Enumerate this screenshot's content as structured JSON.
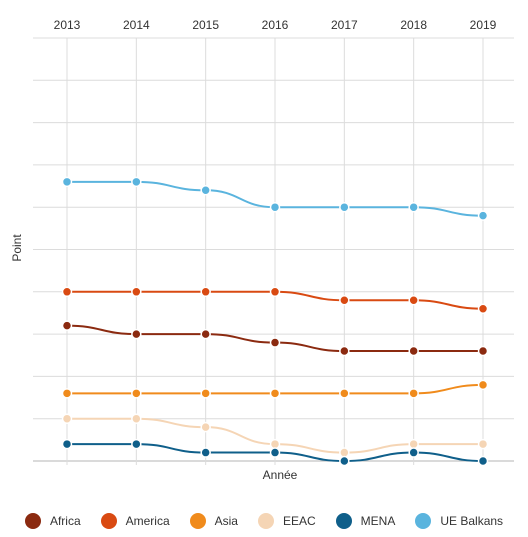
{
  "chart_data": {
    "type": "line",
    "title": "",
    "xlabel": "Année",
    "ylabel": "Point",
    "x": [
      "2013",
      "2014",
      "2015",
      "2016",
      "2017",
      "2018",
      "2019"
    ],
    "ylim": [
      0,
      10
    ],
    "grid": true,
    "legend_position": "bottom",
    "series": [
      {
        "name": "Africa",
        "color": "#8b2a10",
        "values": [
          3.2,
          3.0,
          3.0,
          2.8,
          2.6,
          2.6,
          2.6
        ]
      },
      {
        "name": "America",
        "color": "#d94a12",
        "values": [
          4.0,
          4.0,
          4.0,
          4.0,
          3.8,
          3.8,
          3.6
        ]
      },
      {
        "name": "Asia",
        "color": "#f08b1c",
        "values": [
          1.6,
          1.6,
          1.6,
          1.6,
          1.6,
          1.6,
          1.8
        ]
      },
      {
        "name": "EEAC",
        "color": "#f5d5b5",
        "values": [
          1.0,
          1.0,
          0.8,
          0.4,
          0.2,
          0.4,
          0.4
        ]
      },
      {
        "name": "MENA",
        "color": "#0f5f8a",
        "values": [
          0.4,
          0.4,
          0.2,
          0.2,
          0.0,
          0.2,
          0.0
        ]
      },
      {
        "name": "UE Balkans",
        "color": "#5ab4de",
        "values": [
          6.6,
          6.6,
          6.4,
          6.0,
          6.0,
          6.0,
          5.8
        ]
      }
    ]
  }
}
